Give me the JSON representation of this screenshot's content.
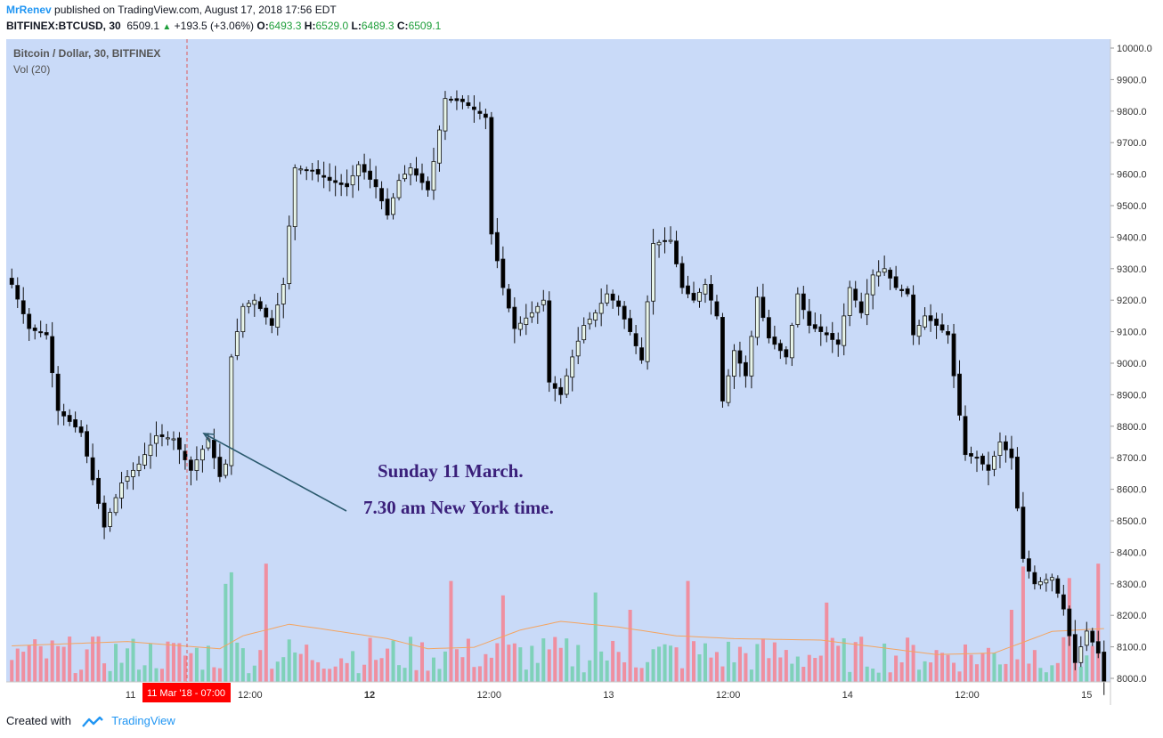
{
  "header": {
    "author": "MrRenev",
    "published_text": "published on TradingView.com, August 17, 2018 17:56 EDT",
    "symbol": "BITFINEX:BTCUSD, 30",
    "last": "6509.1",
    "change": "+193.5 (+3.06%)",
    "o_label": "O:",
    "o": "6493.3",
    "h_label": "H:",
    "h": "6529.0",
    "l_label": "L:",
    "l": "6489.3",
    "c_label": "C:",
    "c": "6509.1"
  },
  "legend": {
    "title": "Bitcoin / Dollar, 30, BITFINEX",
    "indicator": "Vol (20)"
  },
  "annotation": {
    "line1": "Sunday 11 March.",
    "line2": "7.30 am New York time."
  },
  "crosshair_label": "11 Mar '18 - 07:00",
  "footer": {
    "created_with": "Created with",
    "brand": "TradingView"
  },
  "colors": {
    "background": "#c9daf8",
    "up_body": "#e8f5e9",
    "down_body": "#000000",
    "wick": "#111111",
    "vol_up": "#7fd1b9",
    "vol_down": "#ef8fa0",
    "ma": "#f4a460",
    "annotation_text": "#3a1f7a",
    "arrow": "#2b5a6e",
    "crosshair": "#e05a5a",
    "crosshair_label_bg": "#ff0000"
  },
  "chart_data": {
    "type": "candlestick",
    "yaxis": {
      "min": 8000,
      "max": 10000,
      "ticks": [
        8000,
        8100,
        8200,
        8300,
        8400,
        8500,
        8600,
        8700,
        8800,
        8900,
        9000,
        9100,
        9200,
        9300,
        9400,
        9500,
        9600,
        9700,
        9800,
        9900,
        10000
      ]
    },
    "xaxis": {
      "ticks": [
        {
          "label": "11",
          "at": 0.113,
          "bold": false
        },
        {
          "label": "12:00",
          "at": 0.224,
          "bold": false
        },
        {
          "label": "12",
          "at": 0.335,
          "bold": true
        },
        {
          "label": "12:00",
          "at": 0.446,
          "bold": false
        },
        {
          "label": "13",
          "at": 0.557,
          "bold": false
        },
        {
          "label": "12:00",
          "at": 0.668,
          "bold": false
        },
        {
          "label": "14",
          "at": 0.779,
          "bold": false
        },
        {
          "label": "12:00",
          "at": 0.89,
          "bold": false
        },
        {
          "label": "15",
          "at": 1.001,
          "bold": false
        }
      ]
    },
    "anchors": [
      [
        0,
        9250
      ],
      [
        3,
        9110
      ],
      [
        6,
        9090
      ],
      [
        8,
        8850
      ],
      [
        12,
        8780
      ],
      [
        16,
        8480
      ],
      [
        19,
        8620
      ],
      [
        22,
        8680
      ],
      [
        25,
        8770
      ],
      [
        28,
        8760
      ],
      [
        31,
        8660
      ],
      [
        34,
        8760
      ],
      [
        36,
        8640
      ],
      [
        37,
        8680
      ],
      [
        38,
        9020
      ],
      [
        40,
        9180
      ],
      [
        42,
        9200
      ],
      [
        45,
        9120
      ],
      [
        47,
        9250
      ],
      [
        49,
        9620
      ],
      [
        52,
        9610
      ],
      [
        55,
        9580
      ],
      [
        58,
        9560
      ],
      [
        60,
        9630
      ],
      [
        63,
        9560
      ],
      [
        65,
        9470
      ],
      [
        67,
        9580
      ],
      [
        69,
        9620
      ],
      [
        72,
        9550
      ],
      [
        73,
        9640
      ],
      [
        75,
        9840
      ],
      [
        78,
        9830
      ],
      [
        82,
        9780
      ],
      [
        83,
        9410
      ],
      [
        85,
        9240
      ],
      [
        87,
        9110
      ],
      [
        90,
        9160
      ],
      [
        92,
        9200
      ],
      [
        93,
        8940
      ],
      [
        95,
        8900
      ],
      [
        97,
        9020
      ],
      [
        99,
        9120
      ],
      [
        101,
        9160
      ],
      [
        103,
        9220
      ],
      [
        105,
        9180
      ],
      [
        107,
        9100
      ],
      [
        109,
        9010
      ],
      [
        111,
        9380
      ],
      [
        114,
        9390
      ],
      [
        116,
        9240
      ],
      [
        118,
        9200
      ],
      [
        120,
        9250
      ],
      [
        122,
        9150
      ],
      [
        123,
        8880
      ],
      [
        125,
        9040
      ],
      [
        127,
        8960
      ],
      [
        129,
        9210
      ],
      [
        131,
        9080
      ],
      [
        134,
        9020
      ],
      [
        136,
        9220
      ],
      [
        138,
        9120
      ],
      [
        141,
        9090
      ],
      [
        143,
        9060
      ],
      [
        145,
        9240
      ],
      [
        147,
        9160
      ],
      [
        149,
        9280
      ],
      [
        151,
        9300
      ],
      [
        153,
        9240
      ],
      [
        155,
        9220
      ],
      [
        156,
        9090
      ],
      [
        158,
        9150
      ],
      [
        160,
        9120
      ],
      [
        162,
        9090
      ],
      [
        163,
        8960
      ],
      [
        165,
        8710
      ],
      [
        167,
        8700
      ],
      [
        169,
        8660
      ],
      [
        171,
        8750
      ],
      [
        173,
        8700
      ],
      [
        175,
        8380
      ],
      [
        177,
        8300
      ],
      [
        180,
        8320
      ],
      [
        182,
        8220
      ],
      [
        184,
        8050
      ],
      [
        186,
        8150
      ],
      [
        188,
        8080
      ],
      [
        189,
        7990
      ]
    ],
    "volume": {
      "max": 10,
      "ma_anchors": [
        [
          0,
          2.5
        ],
        [
          20,
          2.8
        ],
        [
          36,
          2.3
        ],
        [
          40,
          3.2
        ],
        [
          48,
          4.0
        ],
        [
          55,
          3.6
        ],
        [
          65,
          3.0
        ],
        [
          72,
          2.3
        ],
        [
          80,
          2.4
        ],
        [
          88,
          3.6
        ],
        [
          95,
          4.2
        ],
        [
          105,
          3.8
        ],
        [
          115,
          3.2
        ],
        [
          125,
          3.0
        ],
        [
          140,
          2.9
        ],
        [
          150,
          2.4
        ],
        [
          160,
          1.9
        ],
        [
          170,
          2.0
        ],
        [
          180,
          3.5
        ],
        [
          189,
          3.7
        ]
      ],
      "spikes": [
        [
          37,
          6.8
        ],
        [
          38,
          7.6
        ],
        [
          44,
          8.2
        ],
        [
          76,
          7.0
        ],
        [
          85,
          6.0
        ],
        [
          101,
          6.2
        ],
        [
          107,
          5.0
        ],
        [
          117,
          7.0
        ],
        [
          141,
          5.5
        ],
        [
          173,
          5.0
        ],
        [
          175,
          8.0
        ],
        [
          183,
          7.2
        ],
        [
          188,
          8.2
        ]
      ]
    }
  }
}
